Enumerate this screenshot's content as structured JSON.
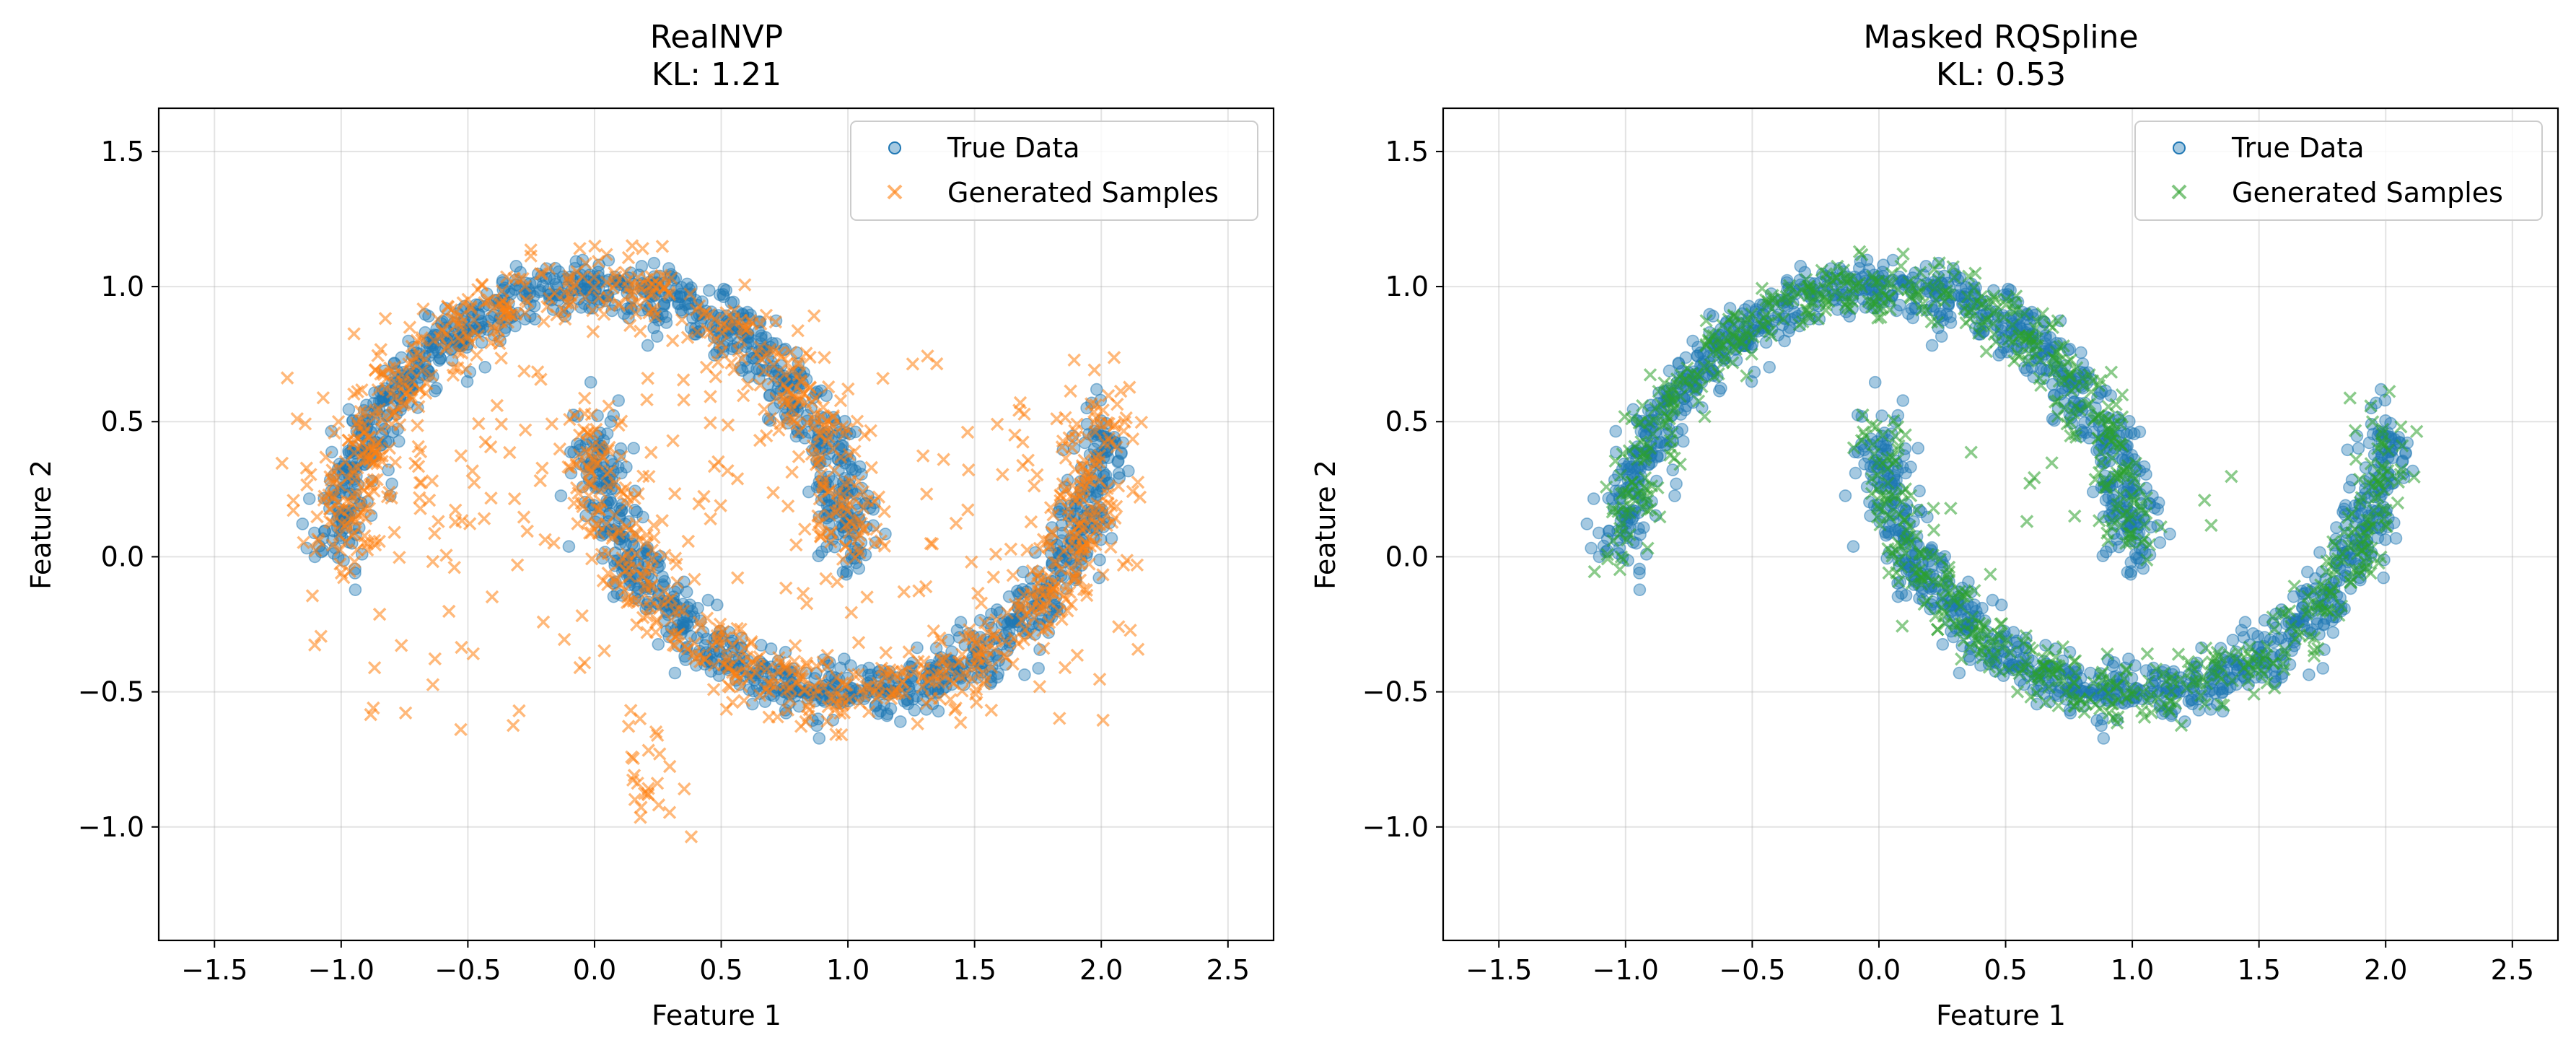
{
  "chart_data": [
    {
      "type": "scatter",
      "title": "RealNVP",
      "subtitle": "KL: 1.21",
      "xlabel": "Feature 1",
      "ylabel": "Feature 2",
      "xlim": [
        -1.72,
        2.68
      ],
      "ylim": [
        -1.42,
        1.66
      ],
      "xticks": [
        "−1.5",
        "−1.0",
        "−0.5",
        "0.0",
        "0.5",
        "1.0",
        "1.5",
        "2.0",
        "2.5"
      ],
      "yticks": [
        "−1.0",
        "−0.5",
        "0.0",
        "0.5",
        "1.0",
        "1.5"
      ],
      "grid": true,
      "legend": "top-right",
      "series": [
        {
          "name": "True Data",
          "marker": "circle",
          "color": "#1f77b4",
          "seed": 11,
          "n": 1700,
          "shape": "two_moons",
          "noise": 0.055
        },
        {
          "name": "Generated Samples",
          "marker": "x",
          "color": "#ff7f0e",
          "seed": 27,
          "n": 1300,
          "shape": "two_moons_loose",
          "noise": 0.06
        }
      ]
    },
    {
      "type": "scatter",
      "title": "Masked RQSpline",
      "subtitle": "KL: 0.53",
      "xlabel": "Feature 1",
      "ylabel": "Feature 2",
      "xlim": [
        -1.72,
        2.68
      ],
      "ylim": [
        -1.42,
        1.66
      ],
      "xticks": [
        "−1.5",
        "−1.0",
        "−0.5",
        "0.0",
        "0.5",
        "1.0",
        "1.5",
        "2.0",
        "2.5"
      ],
      "yticks": [
        "−1.0",
        "−0.5",
        "0.0",
        "0.5",
        "1.0",
        "1.5"
      ],
      "grid": true,
      "legend": "top-right",
      "series": [
        {
          "name": "True Data",
          "marker": "circle",
          "color": "#1f77b4",
          "seed": 11,
          "n": 1700,
          "shape": "two_moons",
          "noise": 0.055
        },
        {
          "name": "Generated Samples",
          "marker": "x",
          "color": "#2ca02c",
          "seed": 53,
          "n": 900,
          "shape": "two_moons_tight",
          "noise": 0.055
        }
      ]
    }
  ]
}
